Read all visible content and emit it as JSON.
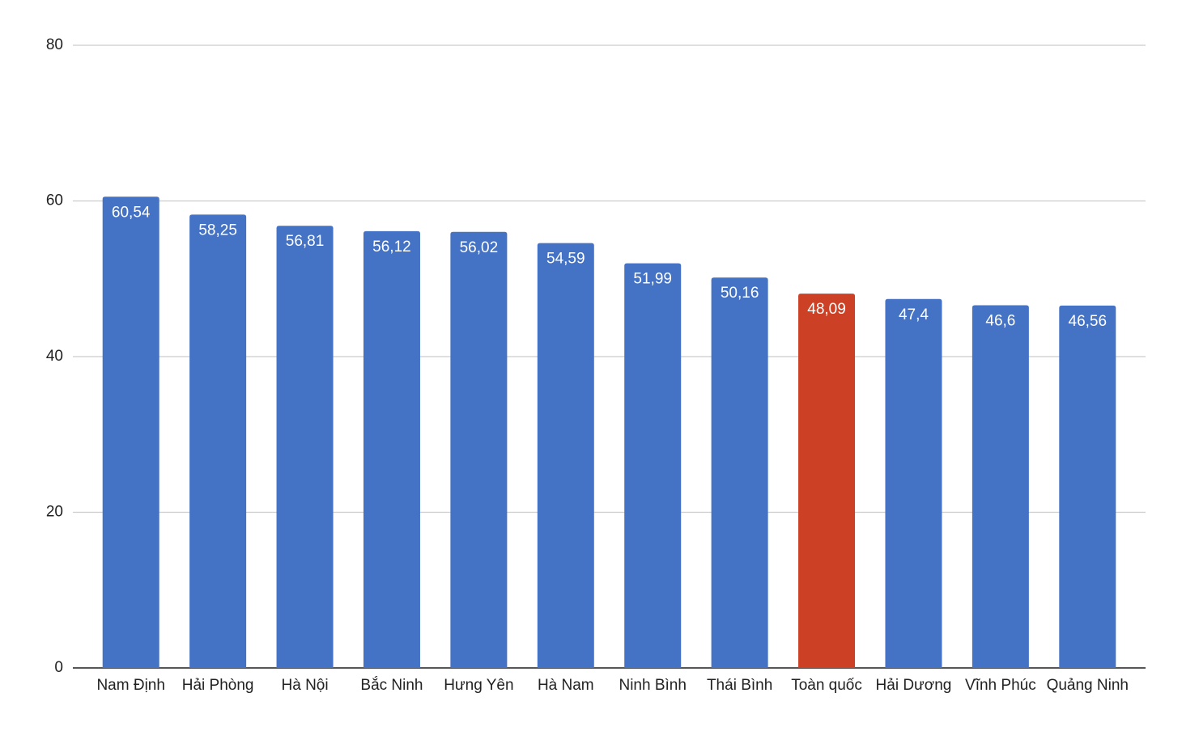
{
  "chart_data": {
    "type": "bar",
    "categories": [
      "Nam Định",
      "Hải Phòng",
      "Hà Nội",
      "Bắc Ninh",
      "Hưng Yên",
      "Hà Nam",
      "Ninh Bình",
      "Thái Bình",
      "Toàn quốc",
      "Hải Dương",
      "Vĩnh Phúc",
      "Quảng Ninh"
    ],
    "values": [
      60.54,
      58.25,
      56.81,
      56.12,
      56.02,
      54.59,
      51.99,
      50.16,
      48.09,
      47.4,
      46.6,
      46.56
    ],
    "value_labels": [
      "60,54",
      "58,25",
      "56,81",
      "56,12",
      "56,02",
      "54,59",
      "51,99",
      "50,16",
      "48,09",
      "47,4",
      "46,6",
      "46,56"
    ],
    "colors": [
      "#4472c4",
      "#4472c4",
      "#4472c4",
      "#4472c4",
      "#4472c4",
      "#4472c4",
      "#4472c4",
      "#4472c4",
      "#cc4125",
      "#4472c4",
      "#4472c4",
      "#4472c4"
    ],
    "ylim": [
      0,
      80
    ],
    "yticks": [
      0,
      20,
      40,
      60,
      80
    ],
    "grid": true
  }
}
